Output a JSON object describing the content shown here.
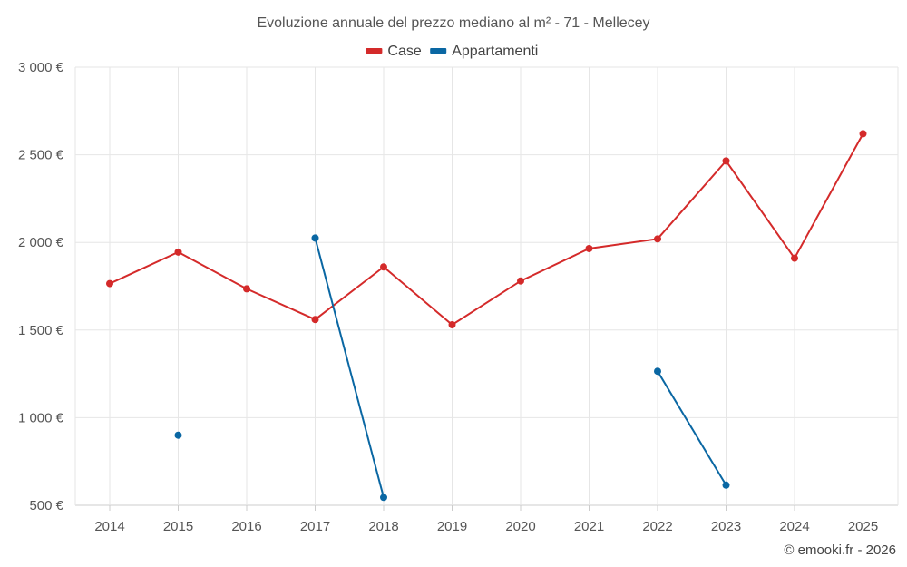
{
  "chart_data": {
    "type": "line",
    "title": "Evoluzione annuale del prezzo mediano al m² - 71 - Mellecey",
    "xlabel": "",
    "ylabel": "",
    "categories": [
      "2014",
      "2015",
      "2016",
      "2017",
      "2018",
      "2019",
      "2020",
      "2021",
      "2022",
      "2023",
      "2024",
      "2025"
    ],
    "ylim": [
      500,
      3000
    ],
    "yticks": [
      500,
      1000,
      1500,
      2000,
      2500,
      3000
    ],
    "ytick_labels": [
      "500 €",
      "1 000 €",
      "1 500 €",
      "2 000 €",
      "2 500 €",
      "3 000 €"
    ],
    "grid": true,
    "legend_position": "top-center",
    "series": [
      {
        "name": "Case",
        "color": "#d42a2a",
        "values": [
          1765,
          1945,
          1735,
          1560,
          1860,
          1530,
          1780,
          1965,
          2020,
          2465,
          1910,
          2620
        ]
      },
      {
        "name": "Appartamenti",
        "color": "#0a67a3",
        "values": [
          null,
          900,
          null,
          2025,
          545,
          null,
          null,
          null,
          1265,
          615,
          null,
          null
        ]
      }
    ]
  },
  "footer": {
    "credit": "© emooki.fr - 2026"
  }
}
